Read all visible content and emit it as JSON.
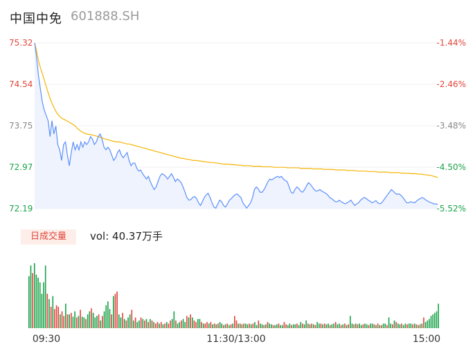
{
  "header": {
    "name": "中国中免",
    "code": "601888.SH"
  },
  "volume_panel": {
    "tab_label": "日成交量",
    "vol_prefix": "vol: ",
    "vol_value": "40.37万手"
  },
  "colors": {
    "price_line": "#5b8ff9",
    "avg_line": "#f5b400",
    "up": "#e2463b",
    "down": "#1aa34a",
    "fill": "#eef3fd"
  },
  "chart_data": [
    {
      "type": "line",
      "title": "",
      "y_labels_left": [
        "75.32",
        "74.54",
        "73.75",
        "72.97",
        "72.19"
      ],
      "y_labels_right": [
        "-1.44%",
        "-2.46%",
        "-3.48%",
        "-4.50%",
        "-5.52%"
      ],
      "ylim": [
        72.19,
        75.32
      ],
      "x_ticks": [
        "09:30",
        "11:30/13:00",
        "15:00"
      ],
      "series": [
        {
          "key": "price",
          "values": [
            75.32,
            75.05,
            74.7,
            74.45,
            74.2,
            74.05,
            73.95,
            73.85,
            73.55,
            73.85,
            73.6,
            73.75,
            73.4,
            73.3,
            73.1,
            73.4,
            73.45,
            73.2,
            73.0,
            73.25,
            73.45,
            73.3,
            73.4,
            73.3,
            73.45,
            73.35,
            73.45,
            73.4,
            73.45,
            73.55,
            73.5,
            73.4,
            73.45,
            73.55,
            73.6,
            73.5,
            73.35,
            73.3,
            73.35,
            73.3,
            73.2,
            73.1,
            73.15,
            73.25,
            73.3,
            73.2,
            73.15,
            73.2,
            73.25,
            73.1,
            73.0,
            73.05,
            73.05,
            72.95,
            72.9,
            72.92,
            72.85,
            72.8,
            72.75,
            72.8,
            72.7,
            72.62,
            72.55,
            72.6,
            72.7,
            72.8,
            72.85,
            72.83,
            72.8,
            72.75,
            72.8,
            72.85,
            72.78,
            72.7,
            72.75,
            72.72,
            72.68,
            72.6,
            72.5,
            72.4,
            72.35,
            72.36,
            72.4,
            72.42,
            72.38,
            72.3,
            72.25,
            72.32,
            72.4,
            72.45,
            72.48,
            72.4,
            72.3,
            72.22,
            72.2,
            72.28,
            72.35,
            72.32,
            72.25,
            72.22,
            72.28,
            72.35,
            72.38,
            72.42,
            72.45,
            72.47,
            72.43,
            72.4,
            72.3,
            72.25,
            72.2,
            72.25,
            72.3,
            72.4,
            72.55,
            72.6,
            72.56,
            72.5,
            72.5,
            72.55,
            72.62,
            72.7,
            72.75,
            72.73,
            72.76,
            72.78,
            72.8,
            72.78,
            72.8,
            72.75,
            72.72,
            72.7,
            72.6,
            72.5,
            72.48,
            72.55,
            72.6,
            72.57,
            72.52,
            72.5,
            72.55,
            72.62,
            72.68,
            72.65,
            72.6,
            72.55,
            72.52,
            72.53,
            72.55,
            72.52,
            72.5,
            72.48,
            72.45,
            72.4,
            72.38,
            72.35,
            72.32,
            72.32,
            72.35,
            72.32,
            72.3,
            72.28,
            72.3,
            72.32,
            72.35,
            72.3,
            72.25,
            72.28,
            72.3,
            72.35,
            72.38,
            72.4,
            72.38,
            72.35,
            72.33,
            72.3,
            72.32,
            72.34,
            72.3,
            72.28,
            72.3,
            72.35,
            72.4,
            72.45,
            72.5,
            72.55,
            72.52,
            72.48,
            72.46,
            72.47,
            72.44,
            72.4,
            72.35,
            72.3,
            72.3,
            72.32,
            72.31,
            72.3,
            72.33,
            72.36,
            72.38,
            72.4,
            72.38,
            72.35,
            72.33,
            72.31,
            72.3,
            72.28,
            72.28,
            72.27
          ]
        },
        {
          "key": "avg",
          "values": [
            75.32,
            75.17,
            74.98,
            74.85,
            74.74,
            74.62,
            74.5,
            74.38,
            74.27,
            74.18,
            74.1,
            74.03,
            73.97,
            73.93,
            73.9,
            73.88,
            73.86,
            73.84,
            73.82,
            73.8,
            73.78,
            73.75,
            73.71,
            73.68,
            73.65,
            73.63,
            73.61,
            73.6,
            73.59,
            73.59,
            73.58,
            73.57,
            73.56,
            73.55,
            73.54,
            73.53,
            73.51,
            73.5,
            73.49,
            73.48,
            73.47,
            73.46,
            73.45,
            73.45,
            73.45,
            73.44,
            73.43,
            73.42,
            73.41,
            73.41,
            73.4,
            73.39,
            73.38,
            73.37,
            73.36,
            73.35,
            73.34,
            73.33,
            73.32,
            73.31,
            73.3,
            73.29,
            73.28,
            73.27,
            73.26,
            73.25,
            73.24,
            73.23,
            73.22,
            73.21,
            73.2,
            73.19,
            73.18,
            73.17,
            73.16,
            73.15,
            73.14,
            73.14,
            73.13,
            73.12,
            73.12,
            73.11,
            73.1,
            73.1,
            73.1,
            73.09,
            73.09,
            73.08,
            73.08,
            73.07,
            73.07,
            73.06,
            73.06,
            73.06,
            73.05,
            73.05,
            73.04,
            73.04,
            73.03,
            73.03,
            73.03,
            73.03,
            73.02,
            73.02,
            73.02,
            73.01,
            73.01,
            73.01,
            73.0,
            73.0,
            73.0,
            73.0,
            73.0,
            72.99,
            72.99,
            72.99,
            72.99,
            72.99,
            72.98,
            72.98,
            72.98,
            72.98,
            72.98,
            72.98,
            72.97,
            72.97,
            72.97,
            72.97,
            72.97,
            72.97,
            72.97,
            72.96,
            72.96,
            72.96,
            72.96,
            72.96,
            72.96,
            72.96,
            72.95,
            72.95,
            72.95,
            72.95,
            72.95,
            72.95,
            72.94,
            72.94,
            72.94,
            72.94,
            72.94,
            72.94,
            72.93,
            72.93,
            72.93,
            72.93,
            72.93,
            72.93,
            72.92,
            72.92,
            72.92,
            72.92,
            72.92,
            72.92,
            72.91,
            72.91,
            72.91,
            72.91,
            72.91,
            72.9,
            72.9,
            72.9,
            72.9,
            72.9,
            72.9,
            72.89,
            72.89,
            72.89,
            72.89,
            72.89,
            72.88,
            72.88,
            72.88,
            72.88,
            72.88,
            72.88,
            72.87,
            72.87,
            72.87,
            72.87,
            72.87,
            72.87,
            72.86,
            72.86,
            72.86,
            72.86,
            72.86,
            72.85,
            72.85,
            72.85,
            72.85,
            72.84,
            72.84,
            72.84,
            72.83,
            72.83,
            72.82,
            72.82,
            72.81,
            72.8,
            72.79,
            72.78
          ]
        }
      ]
    },
    {
      "type": "bar",
      "title": "",
      "series": [
        {
          "key": "volume",
          "values": [
            68,
            82,
            72,
            85,
            70,
            66,
            60,
            45,
            60,
            82,
            45,
            38,
            28,
            42,
            25,
            30,
            28,
            18,
            22,
            16,
            32,
            18,
            18,
            20,
            15,
            22,
            14,
            16,
            24,
            15,
            14,
            12,
            18,
            22,
            26,
            20,
            14,
            16,
            18,
            10,
            16,
            22,
            30,
            35,
            25,
            18,
            42,
            45,
            48,
            18,
            14,
            20,
            12,
            10,
            14,
            18,
            24,
            10,
            14,
            8,
            10,
            14,
            12,
            10,
            12,
            8,
            12,
            10,
            8,
            6,
            8,
            6,
            8,
            5,
            6,
            8,
            6,
            10,
            12,
            22,
            10,
            6,
            8,
            10,
            12,
            8,
            16,
            14,
            18,
            14,
            10,
            8,
            12,
            12,
            8,
            6,
            6,
            8,
            6,
            8,
            5,
            6,
            5,
            6,
            8,
            6,
            4,
            5,
            6,
            4,
            5,
            6,
            16,
            10,
            6,
            6,
            5,
            6,
            6,
            5,
            6,
            5,
            6,
            8,
            4,
            10,
            6,
            5,
            4,
            5,
            8,
            6,
            5,
            4,
            4,
            5,
            6,
            4,
            4,
            8,
            5,
            4,
            6,
            4,
            5,
            5,
            6,
            4,
            8,
            6,
            5,
            10,
            6,
            5,
            6,
            5,
            4,
            8,
            6,
            6,
            5,
            6,
            5,
            6,
            4,
            5,
            6,
            8,
            5,
            6,
            4,
            5,
            6,
            4,
            5,
            16,
            6,
            5,
            6,
            5,
            6,
            4,
            5,
            6,
            5,
            4,
            6,
            6,
            5,
            4,
            6,
            4,
            4,
            6,
            6,
            4,
            14,
            6,
            5,
            10,
            8,
            6,
            5,
            6,
            4,
            6,
            5,
            6,
            6,
            5,
            6,
            5,
            4,
            5,
            6,
            14,
            8,
            10,
            12,
            16,
            18,
            20,
            22,
            32
          ],
          "colors": [
            "down",
            "down",
            "up",
            "down",
            "down",
            "down",
            "down",
            "down",
            "down",
            "down",
            "up",
            "down",
            "up",
            "down",
            "up",
            "up",
            "up",
            "down",
            "up",
            "up",
            "down",
            "up",
            "down",
            "up",
            "down",
            "down",
            "up",
            "down",
            "up",
            "down",
            "down",
            "up",
            "down",
            "down",
            "up",
            "down",
            "down",
            "down",
            "up",
            "down",
            "up",
            "down",
            "down",
            "down",
            "down",
            "up",
            "down",
            "up",
            "up",
            "down",
            "down",
            "up",
            "down",
            "up",
            "down",
            "down",
            "up",
            "down",
            "up",
            "down",
            "down",
            "up",
            "down",
            "up",
            "down",
            "up",
            "down",
            "up",
            "down",
            "up",
            "up",
            "down",
            "up",
            "down",
            "up",
            "down",
            "up",
            "up",
            "down",
            "down",
            "up",
            "down",
            "down",
            "up",
            "down",
            "down",
            "up",
            "down",
            "up",
            "down",
            "up",
            "up",
            "down",
            "down",
            "up",
            "down",
            "up",
            "up",
            "down",
            "up",
            "down",
            "up",
            "down",
            "up",
            "down",
            "down",
            "up",
            "down",
            "up",
            "down",
            "up",
            "down",
            "up",
            "up",
            "down",
            "up",
            "down",
            "up",
            "down",
            "down",
            "up",
            "down",
            "up",
            "down",
            "down",
            "up",
            "down",
            "down",
            "up",
            "down",
            "up",
            "down",
            "down",
            "up",
            "down",
            "down",
            "up",
            "down",
            "down",
            "up",
            "up",
            "down",
            "down",
            "up",
            "down",
            "down",
            "up",
            "down",
            "down",
            "up",
            "down",
            "down",
            "up",
            "down",
            "up",
            "down",
            "up",
            "down",
            "down",
            "up",
            "down",
            "up",
            "down",
            "down",
            "up",
            "down",
            "down",
            "up",
            "down",
            "down",
            "up",
            "down",
            "up",
            "down",
            "up",
            "down",
            "down",
            "up",
            "down",
            "up",
            "down",
            "down",
            "up",
            "down",
            "down",
            "up",
            "down",
            "down",
            "up",
            "down",
            "up",
            "down",
            "up",
            "down",
            "down",
            "up",
            "down",
            "down",
            "up",
            "down",
            "up",
            "down",
            "down",
            "up",
            "down",
            "down",
            "up",
            "down",
            "down",
            "up",
            "down",
            "up",
            "down",
            "up",
            "down",
            "up",
            "down"
          ]
        }
      ]
    }
  ]
}
